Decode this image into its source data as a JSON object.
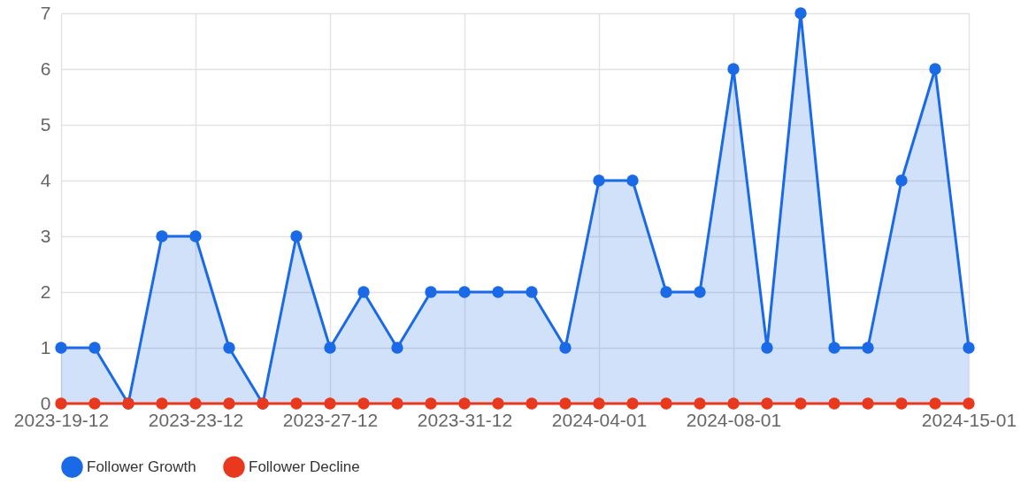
{
  "chart_data": {
    "type": "area",
    "categories": [
      "2023-19-12",
      null,
      null,
      null,
      "2023-23-12",
      null,
      null,
      null,
      "2023-27-12",
      null,
      null,
      null,
      "2023-31-12",
      null,
      null,
      null,
      "2024-04-01",
      null,
      null,
      null,
      "2024-08-01",
      null,
      null,
      null,
      null,
      null,
      null,
      "2024-15-01"
    ],
    "series": [
      {
        "name": "Follower Growth",
        "color": "#1a6ae8",
        "values": [
          1,
          1,
          0,
          3,
          3,
          1,
          0,
          3,
          1,
          2,
          1,
          2,
          2,
          2,
          2,
          1,
          4,
          4,
          2,
          2,
          6,
          1,
          7,
          1,
          1,
          4,
          6,
          1
        ]
      },
      {
        "name": "Follower Decline",
        "type": "line",
        "color": "#e8391f",
        "values": [
          0,
          0,
          0,
          0,
          0,
          0,
          0,
          0,
          0,
          0,
          0,
          0,
          0,
          0,
          0,
          0,
          0,
          0,
          0,
          0,
          0,
          0,
          0,
          0,
          0,
          0,
          0,
          0
        ]
      }
    ],
    "ylim": [
      0,
      7
    ],
    "yticks": [
      0,
      1,
      2,
      3,
      4,
      5,
      6,
      7
    ],
    "grid": true,
    "legend": "bottom",
    "marker": "circle",
    "line_style": "solid"
  }
}
